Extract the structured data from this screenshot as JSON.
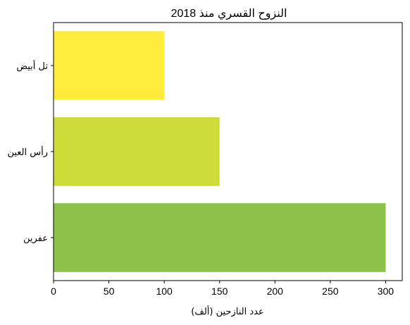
{
  "chart_data": {
    "type": "bar",
    "orientation": "horizontal",
    "title": "النزوح القسري منذ 2018",
    "xlabel": "عدد النازحين (ألف)",
    "ylabel": "",
    "xlim": [
      0,
      315
    ],
    "xticks": [
      0,
      50,
      100,
      150,
      200,
      250,
      300
    ],
    "categories": [
      "عفرين",
      "رأس العين",
      "تل أبيض"
    ],
    "values": [
      300,
      150,
      100
    ],
    "colors": [
      "#8bc34a",
      "#cddc39",
      "#ffeb3b"
    ],
    "grid": false,
    "legend": "none"
  }
}
